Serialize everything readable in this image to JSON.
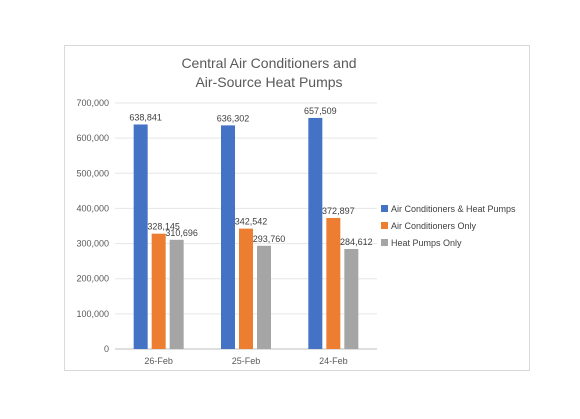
{
  "chart_data": {
    "type": "bar",
    "title_lines": [
      "Central Air Conditioners and",
      "Air-Source Heat Pumps"
    ],
    "categories": [
      "26-Feb",
      "25-Feb",
      "24-Feb"
    ],
    "series": [
      {
        "name": "Air Conditioners & Heat Pumps",
        "color": "#4472C4",
        "values": [
          638841,
          636302,
          657509
        ],
        "labels": [
          "638,841",
          "636,302",
          "657,509"
        ]
      },
      {
        "name": "Air Conditioners Only",
        "color": "#ED7D31",
        "values": [
          328145,
          342542,
          372897
        ],
        "labels": [
          "328,145",
          "342,542",
          "372,897"
        ]
      },
      {
        "name": "Heat Pumps Only",
        "color": "#A5A5A5",
        "values": [
          310696,
          293760,
          284612
        ],
        "labels": [
          "310,696",
          "293,760",
          "284,612"
        ]
      }
    ],
    "ylim": [
      0,
      700000
    ],
    "yticks": [
      0,
      100000,
      200000,
      300000,
      400000,
      500000,
      600000,
      700000
    ],
    "ytick_labels": [
      "0",
      "100,000",
      "200,000",
      "300,000",
      "400,000",
      "500,000",
      "600,000",
      "700,000"
    ],
    "grid": true,
    "legend_position": "right"
  }
}
